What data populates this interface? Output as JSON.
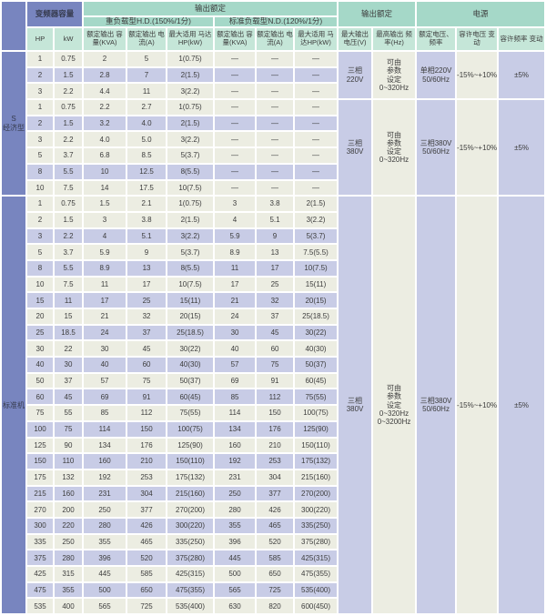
{
  "header": {
    "capacity_group": "变频器容量",
    "output_group": "输出额定",
    "hd_subgroup": "重负载型H.D.(150%/1分)",
    "nd_subgroup": "标准负载型N.D.(120%/1分)",
    "output_rating_group": "输出额定",
    "power_group": "电源",
    "columns": [
      "HP",
      "kW",
      "额定输出 容量(KVA)",
      "额定输出 电流(A)",
      "最大适用 马达HP(kW)",
      "额定输出 容量(KVA)",
      "额定输出 电流(A)",
      "最大适用 马达HP(kW)",
      "最大输出 电压(V)",
      "最高输出 频率(Hz)",
      "额定电压、 频率",
      "容许电压 变动",
      "容许频率 变动"
    ]
  },
  "colors": {
    "header_blue": "#7885bf",
    "header_teal": "#a5d8c8",
    "header_teal_light": "#c5e6d8",
    "row_cream": "#ecede2",
    "row_purple": "#c8cce6"
  },
  "sections": [
    {
      "label": "S\n经济型",
      "groups": [
        {
          "rows": [
            [
              "1",
              "0.75",
              "2",
              "5",
              "1(0.75)",
              "—",
              "—",
              "—"
            ],
            [
              "2",
              "1.5",
              "2.8",
              "7",
              "2(1.5)",
              "—",
              "—",
              "—"
            ],
            [
              "3",
              "2.2",
              "4.4",
              "11",
              "3(2.2)",
              "—",
              "—",
              "—"
            ]
          ],
          "row_shades": [
            "cream",
            "purple",
            "cream"
          ],
          "output": {
            "max_voltage": "三相\n220V",
            "max_freq": "可由\n参数\n设定\n0~320Hz"
          },
          "power": {
            "rated": "单相220V\n50/60Hz",
            "voltage_tolerance": "-15%~+10%",
            "freq_tolerance": "±5%"
          }
        },
        {
          "rows": [
            [
              "1",
              "0.75",
              "2.2",
              "2.7",
              "1(0.75)",
              "—",
              "—",
              "—"
            ],
            [
              "2",
              "1.5",
              "3.2",
              "4.0",
              "2(1.5)",
              "—",
              "—",
              "—"
            ],
            [
              "3",
              "2.2",
              "4.0",
              "5.0",
              "3(2.2)",
              "—",
              "—",
              "—"
            ],
            [
              "5",
              "3.7",
              "6.8",
              "8.5",
              "5(3.7)",
              "—",
              "—",
              "—"
            ],
            [
              "8",
              "5.5",
              "10",
              "12.5",
              "8(5.5)",
              "—",
              "—",
              "—"
            ],
            [
              "10",
              "7.5",
              "14",
              "17.5",
              "10(7.5)",
              "—",
              "—",
              "—"
            ]
          ],
          "row_shades": [
            "cream",
            "purple",
            "cream",
            "cream",
            "purple",
            "cream"
          ],
          "output": {
            "max_voltage": "三相\n380V",
            "max_freq": "可由\n参数\n设定\n0~320Hz"
          },
          "power": {
            "rated": "三相380V\n50/60Hz",
            "voltage_tolerance": "-15%~+10%",
            "freq_tolerance": "±5%"
          }
        }
      ]
    },
    {
      "label": "标准机",
      "groups": [
        {
          "rows": [
            [
              "1",
              "0.75",
              "1.5",
              "2.1",
              "1(0.75)",
              "3",
              "3.8",
              "2(1.5)"
            ],
            [
              "2",
              "1.5",
              "3",
              "3.8",
              "2(1.5)",
              "4",
              "5.1",
              "3(2.2)"
            ],
            [
              "3",
              "2.2",
              "4",
              "5.1",
              "3(2.2)",
              "5.9",
              "9",
              "5(3.7)"
            ],
            [
              "5",
              "3.7",
              "5.9",
              "9",
              "5(3.7)",
              "8.9",
              "13",
              "7.5(5.5)"
            ],
            [
              "8",
              "5.5",
              "8.9",
              "13",
              "8(5.5)",
              "11",
              "17",
              "10(7.5)"
            ],
            [
              "10",
              "7.5",
              "11",
              "17",
              "10(7.5)",
              "17",
              "25",
              "15(11)"
            ],
            [
              "15",
              "11",
              "17",
              "25",
              "15(11)",
              "21",
              "32",
              "20(15)"
            ],
            [
              "20",
              "15",
              "21",
              "32",
              "20(15)",
              "24",
              "37",
              "25(18.5)"
            ],
            [
              "25",
              "18.5",
              "24",
              "37",
              "25(18.5)",
              "30",
              "45",
              "30(22)"
            ],
            [
              "30",
              "22",
              "30",
              "45",
              "30(22)",
              "40",
              "60",
              "40(30)"
            ],
            [
              "40",
              "30",
              "40",
              "60",
              "40(30)",
              "57",
              "75",
              "50(37)"
            ],
            [
              "50",
              "37",
              "57",
              "75",
              "50(37)",
              "69",
              "91",
              "60(45)"
            ],
            [
              "60",
              "45",
              "69",
              "91",
              "60(45)",
              "85",
              "112",
              "75(55)"
            ],
            [
              "75",
              "55",
              "85",
              "112",
              "75(55)",
              "114",
              "150",
              "100(75)"
            ],
            [
              "100",
              "75",
              "114",
              "150",
              "100(75)",
              "134",
              "176",
              "125(90)"
            ],
            [
              "125",
              "90",
              "134",
              "176",
              "125(90)",
              "160",
              "210",
              "150(110)"
            ],
            [
              "150",
              "110",
              "160",
              "210",
              "150(110)",
              "192",
              "253",
              "175(132)"
            ],
            [
              "175",
              "132",
              "192",
              "253",
              "175(132)",
              "231",
              "304",
              "215(160)"
            ],
            [
              "215",
              "160",
              "231",
              "304",
              "215(160)",
              "250",
              "377",
              "270(200)"
            ],
            [
              "270",
              "200",
              "250",
              "377",
              "270(200)",
              "280",
              "426",
              "300(220)"
            ],
            [
              "300",
              "220",
              "280",
              "426",
              "300(220)",
              "355",
              "465",
              "335(250)"
            ],
            [
              "335",
              "250",
              "355",
              "465",
              "335(250)",
              "396",
              "520",
              "375(280)"
            ],
            [
              "375",
              "280",
              "396",
              "520",
              "375(280)",
              "445",
              "585",
              "425(315)"
            ],
            [
              "425",
              "315",
              "445",
              "585",
              "425(315)",
              "500",
              "650",
              "475(355)"
            ],
            [
              "475",
              "355",
              "500",
              "650",
              "475(355)",
              "565",
              "725",
              "535(400)"
            ],
            [
              "535",
              "400",
              "565",
              "725",
              "535(400)",
              "630",
              "820",
              "600(450)"
            ]
          ],
          "row_shades": [
            "cream",
            "cream",
            "purple",
            "cream",
            "purple",
            "cream",
            "purple",
            "cream",
            "purple",
            "cream",
            "purple",
            "cream",
            "purple",
            "cream",
            "purple",
            "cream",
            "purple",
            "cream",
            "purple",
            "cream",
            "purple",
            "cream",
            "purple",
            "cream",
            "purple",
            "cream"
          ],
          "output": {
            "max_voltage": "三相\n380V",
            "max_freq": "可由\n参数\n设定\n0~320Hz\n0~3200Hz"
          },
          "power": {
            "rated": "三相380V\n50/60Hz",
            "voltage_tolerance": "-15%~+10%",
            "freq_tolerance": "±5%"
          }
        }
      ]
    }
  ]
}
